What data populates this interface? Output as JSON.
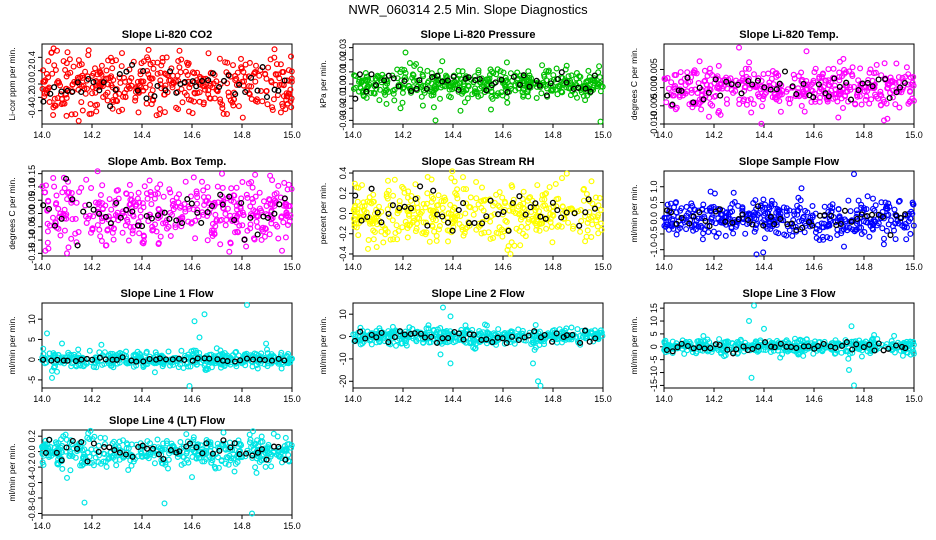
{
  "page_title": "NWR_060314  2.5 Min. Slope Diagnostics",
  "chart_data": [
    {
      "type": "scatter",
      "title": "Slope Li-820 CO2",
      "ylabel": "Li-cor ppm per min.",
      "color": "#ff0000",
      "xlim": [
        14.0,
        15.0
      ],
      "ylim": [
        -0.6,
        0.6
      ],
      "xticks": [
        14.0,
        14.2,
        14.4,
        14.6,
        14.8,
        15.0
      ],
      "xtick_labels": [
        "14.0",
        "14.2",
        "14.4",
        "14.6",
        "14.8",
        "15.0"
      ],
      "yticks": [
        -0.4,
        -0.2,
        0.0,
        0.2,
        0.4
      ],
      "ytick_labels": [
        "-0.4",
        "-0.2",
        "0.0",
        "0.2",
        "0.4"
      ],
      "spread": 0.22,
      "black_spread": 0.12,
      "n": 420,
      "nb": 45,
      "outliers": [
        [
          14.06,
          0.5
        ],
        [
          14.19,
          -0.45
        ],
        [
          14.55,
          0.5
        ],
        [
          14.93,
          0.52
        ],
        [
          14.74,
          -0.45
        ]
      ]
    },
    {
      "type": "scatter",
      "title": "Slope Li-820 Pressure",
      "ylabel": "kPa per min.",
      "color": "#00c000",
      "xlim": [
        14.0,
        15.0
      ],
      "ylim": [
        -0.033,
        0.033
      ],
      "xticks": [
        14.0,
        14.2,
        14.4,
        14.6,
        14.8,
        15.0
      ],
      "xtick_labels": [
        "14.0",
        "14.2",
        "14.4",
        "14.6",
        "14.8",
        "15.0"
      ],
      "yticks": [
        -0.03,
        -0.02,
        -0.01,
        0.0,
        0.01,
        0.02,
        0.03
      ],
      "ytick_labels": [
        "-0.03",
        "-0.02",
        "-0.01",
        "0.00",
        "0.01",
        "0.02",
        "0.03"
      ],
      "spread": 0.007,
      "black_spread": 0.005,
      "n": 420,
      "nb": 45,
      "outliers": [
        [
          14.21,
          0.026
        ],
        [
          14.19,
          -0.02
        ],
        [
          14.33,
          -0.03
        ],
        [
          14.99,
          -0.031
        ],
        [
          14.43,
          -0.022
        ]
      ]
    },
    {
      "type": "scatter",
      "title": "Slope Li-820 Temp.",
      "ylabel": "degrees C per min.",
      "color": "#ff00ff",
      "xlim": [
        14.0,
        15.0
      ],
      "ylim": [
        -0.01,
        0.012
      ],
      "xticks": [
        14.0,
        14.2,
        14.4,
        14.6,
        14.8,
        15.0
      ],
      "xtick_labels": [
        "14.0",
        "14.2",
        "14.4",
        "14.6",
        "14.8",
        "15.0"
      ],
      "yticks": [
        -0.01,
        -0.005,
        0.0,
        0.005
      ],
      "ytick_labels": [
        "-0.010",
        "-0.005",
        "0.000",
        "0.005"
      ],
      "spread": 0.003,
      "black_spread": 0.002,
      "n": 420,
      "nb": 45,
      "outliers": [
        [
          14.3,
          0.011
        ],
        [
          14.57,
          0.01
        ],
        [
          14.88,
          -0.009
        ],
        [
          14.18,
          -0.008
        ]
      ]
    },
    {
      "type": "scatter",
      "title": "Slope Amb. Box Temp.",
      "ylabel": "degrees C per min.",
      "color": "#ff00ff",
      "xlim": [
        14.0,
        15.0
      ],
      "ylim": [
        -0.16,
        0.16
      ],
      "xticks": [
        14.0,
        14.2,
        14.4,
        14.6,
        14.8,
        15.0
      ],
      "xtick_labels": [
        "14.0",
        "14.2",
        "14.4",
        "14.6",
        "14.8",
        "15.0"
      ],
      "yticks": [
        -0.15,
        -0.1,
        -0.05,
        0.0,
        0.05,
        0.1,
        0.15
      ],
      "ytick_labels": [
        "-0.15",
        "-0.10",
        "-0.05",
        "0.00",
        "0.05",
        "0.10",
        "0.15"
      ],
      "spread": 0.06,
      "black_spread": 0.04,
      "n": 420,
      "nb": 45,
      "outliers": [
        [
          14.72,
          0.15
        ],
        [
          14.1,
          -0.15
        ],
        [
          14.96,
          -0.14
        ]
      ]
    },
    {
      "type": "scatter",
      "title": "Slope Gas Stream RH",
      "ylabel": "percent per min.",
      "color": "#ffff00",
      "xlim": [
        14.0,
        15.0
      ],
      "ylim": [
        -0.42,
        0.42
      ],
      "xticks": [
        14.0,
        14.2,
        14.4,
        14.6,
        14.8,
        15.0
      ],
      "xtick_labels": [
        "14.0",
        "14.2",
        "14.4",
        "14.6",
        "14.8",
        "15.0"
      ],
      "yticks": [
        -0.4,
        -0.2,
        0.0,
        0.2,
        0.4
      ],
      "ytick_labels": [
        "-0.4",
        "-0.2",
        "0.0",
        "0.2",
        "0.4"
      ],
      "spread": 0.15,
      "black_spread": 0.1,
      "n": 420,
      "nb": 45,
      "outliers": [
        [
          14.44,
          0.36
        ],
        [
          14.63,
          -0.4
        ],
        [
          14.06,
          -0.35
        ]
      ]
    },
    {
      "type": "scatter",
      "title": "Slope Sample Flow",
      "ylabel": "ml/min per min.",
      "color": "#0000ff",
      "xlim": [
        14.0,
        15.0
      ],
      "ylim": [
        -1.2,
        1.5
      ],
      "xticks": [
        14.0,
        14.2,
        14.4,
        14.6,
        14.8,
        15.0
      ],
      "xtick_labels": [
        "14.0",
        "14.2",
        "14.4",
        "14.6",
        "14.8",
        "15.0"
      ],
      "yticks": [
        -1.0,
        -0.5,
        0.0,
        0.5,
        1.0
      ],
      "ytick_labels": [
        "-1.0",
        "-0.5",
        "0.0",
        "0.5",
        "1.0"
      ],
      "spread": 0.3,
      "black_spread": 0.2,
      "n": 420,
      "nb": 45,
      "outliers": [
        [
          14.76,
          1.4
        ],
        [
          14.37,
          -1.15
        ],
        [
          14.72,
          -0.9
        ],
        [
          14.55,
          0.95
        ]
      ]
    },
    {
      "type": "scatter",
      "title": "Slope Line 1 Flow",
      "ylabel": "ml/min per min.",
      "color": "#00e5e5",
      "xlim": [
        14.0,
        15.0
      ],
      "ylim": [
        -7,
        14
      ],
      "xticks": [
        14.0,
        14.2,
        14.4,
        14.6,
        14.8,
        15.0
      ],
      "xtick_labels": [
        "14.0",
        "14.2",
        "14.4",
        "14.6",
        "14.8",
        "15.0"
      ],
      "yticks": [
        -5,
        0,
        5,
        10
      ],
      "ytick_labels": [
        "-5",
        "0",
        "5",
        "10"
      ],
      "spread": 1.0,
      "black_spread": 0.2,
      "n": 420,
      "nb": 40,
      "outliers": [
        [
          14.82,
          13.5
        ],
        [
          14.61,
          9.5
        ],
        [
          14.65,
          11.2
        ],
        [
          14.59,
          -6.5
        ],
        [
          14.02,
          6.5
        ],
        [
          14.04,
          -4.5
        ],
        [
          14.08,
          4
        ],
        [
          14.63,
          5.5
        ],
        [
          14.06,
          -3
        ]
      ]
    },
    {
      "type": "scatter",
      "title": "Slope Line 2 Flow",
      "ylabel": "ml/min per min.",
      "color": "#00e5e5",
      "xlim": [
        14.0,
        15.0
      ],
      "ylim": [
        -23,
        15
      ],
      "xticks": [
        14.0,
        14.2,
        14.4,
        14.6,
        14.8,
        15.0
      ],
      "xtick_labels": [
        "14.0",
        "14.2",
        "14.4",
        "14.6",
        "14.8",
        "15.0"
      ],
      "yticks": [
        -20,
        -10,
        0,
        10
      ],
      "ytick_labels": [
        "-20",
        "-10",
        "0",
        "10"
      ],
      "spread": 1.8,
      "black_spread": 1.5,
      "n": 420,
      "nb": 45,
      "outliers": [
        [
          14.36,
          13
        ],
        [
          14.39,
          9
        ],
        [
          14.35,
          -8
        ],
        [
          14.74,
          -20
        ],
        [
          14.75,
          -22
        ],
        [
          14.72,
          -12
        ],
        [
          14.39,
          -12
        ],
        [
          14.45,
          5
        ]
      ]
    },
    {
      "type": "scatter",
      "title": "Slope Line 3 Flow",
      "ylabel": "ml/min per min.",
      "color": "#00e5e5",
      "xlim": [
        14.0,
        15.0
      ],
      "ylim": [
        -16,
        17
      ],
      "xticks": [
        14.0,
        14.2,
        14.4,
        14.6,
        14.8,
        15.0
      ],
      "xtick_labels": [
        "14.0",
        "14.2",
        "14.4",
        "14.6",
        "14.8",
        "15.0"
      ],
      "yticks": [
        -15,
        -10,
        -5,
        0,
        5,
        10,
        15
      ],
      "ytick_labels": [
        "-15",
        "-10",
        "-5",
        "0",
        "5",
        "10",
        "15"
      ],
      "spread": 1.5,
      "black_spread": 1.0,
      "n": 420,
      "nb": 45,
      "outliers": [
        [
          14.36,
          16
        ],
        [
          14.35,
          -12
        ],
        [
          14.76,
          -15
        ],
        [
          14.75,
          8
        ],
        [
          14.34,
          10
        ],
        [
          14.4,
          7
        ],
        [
          14.74,
          -9
        ]
      ]
    },
    {
      "type": "scatter",
      "title": "Slope Line 4 (LT) Flow",
      "ylabel": "ml/min per min.",
      "color": "#00e5e5",
      "xlim": [
        14.0,
        15.0
      ],
      "ylim": [
        -0.82,
        0.28
      ],
      "xticks": [
        14.0,
        14.2,
        14.4,
        14.6,
        14.8,
        15.0
      ],
      "xtick_labels": [
        "14.0",
        "14.2",
        "14.4",
        "14.6",
        "14.8",
        "15.0"
      ],
      "yticks": [
        -0.8,
        -0.6,
        -0.4,
        -0.2,
        0.0,
        0.2
      ],
      "ytick_labels": [
        "-0.8",
        "-0.6",
        "-0.4",
        "-0.2",
        "0.0",
        "0.2"
      ],
      "spread": 0.1,
      "black_spread": 0.07,
      "n": 420,
      "nb": 45,
      "outliers": [
        [
          14.17,
          -0.66
        ],
        [
          14.49,
          -0.67
        ],
        [
          14.84,
          -0.8
        ],
        [
          14.1,
          -0.34
        ],
        [
          14.6,
          -0.33
        ]
      ]
    }
  ]
}
